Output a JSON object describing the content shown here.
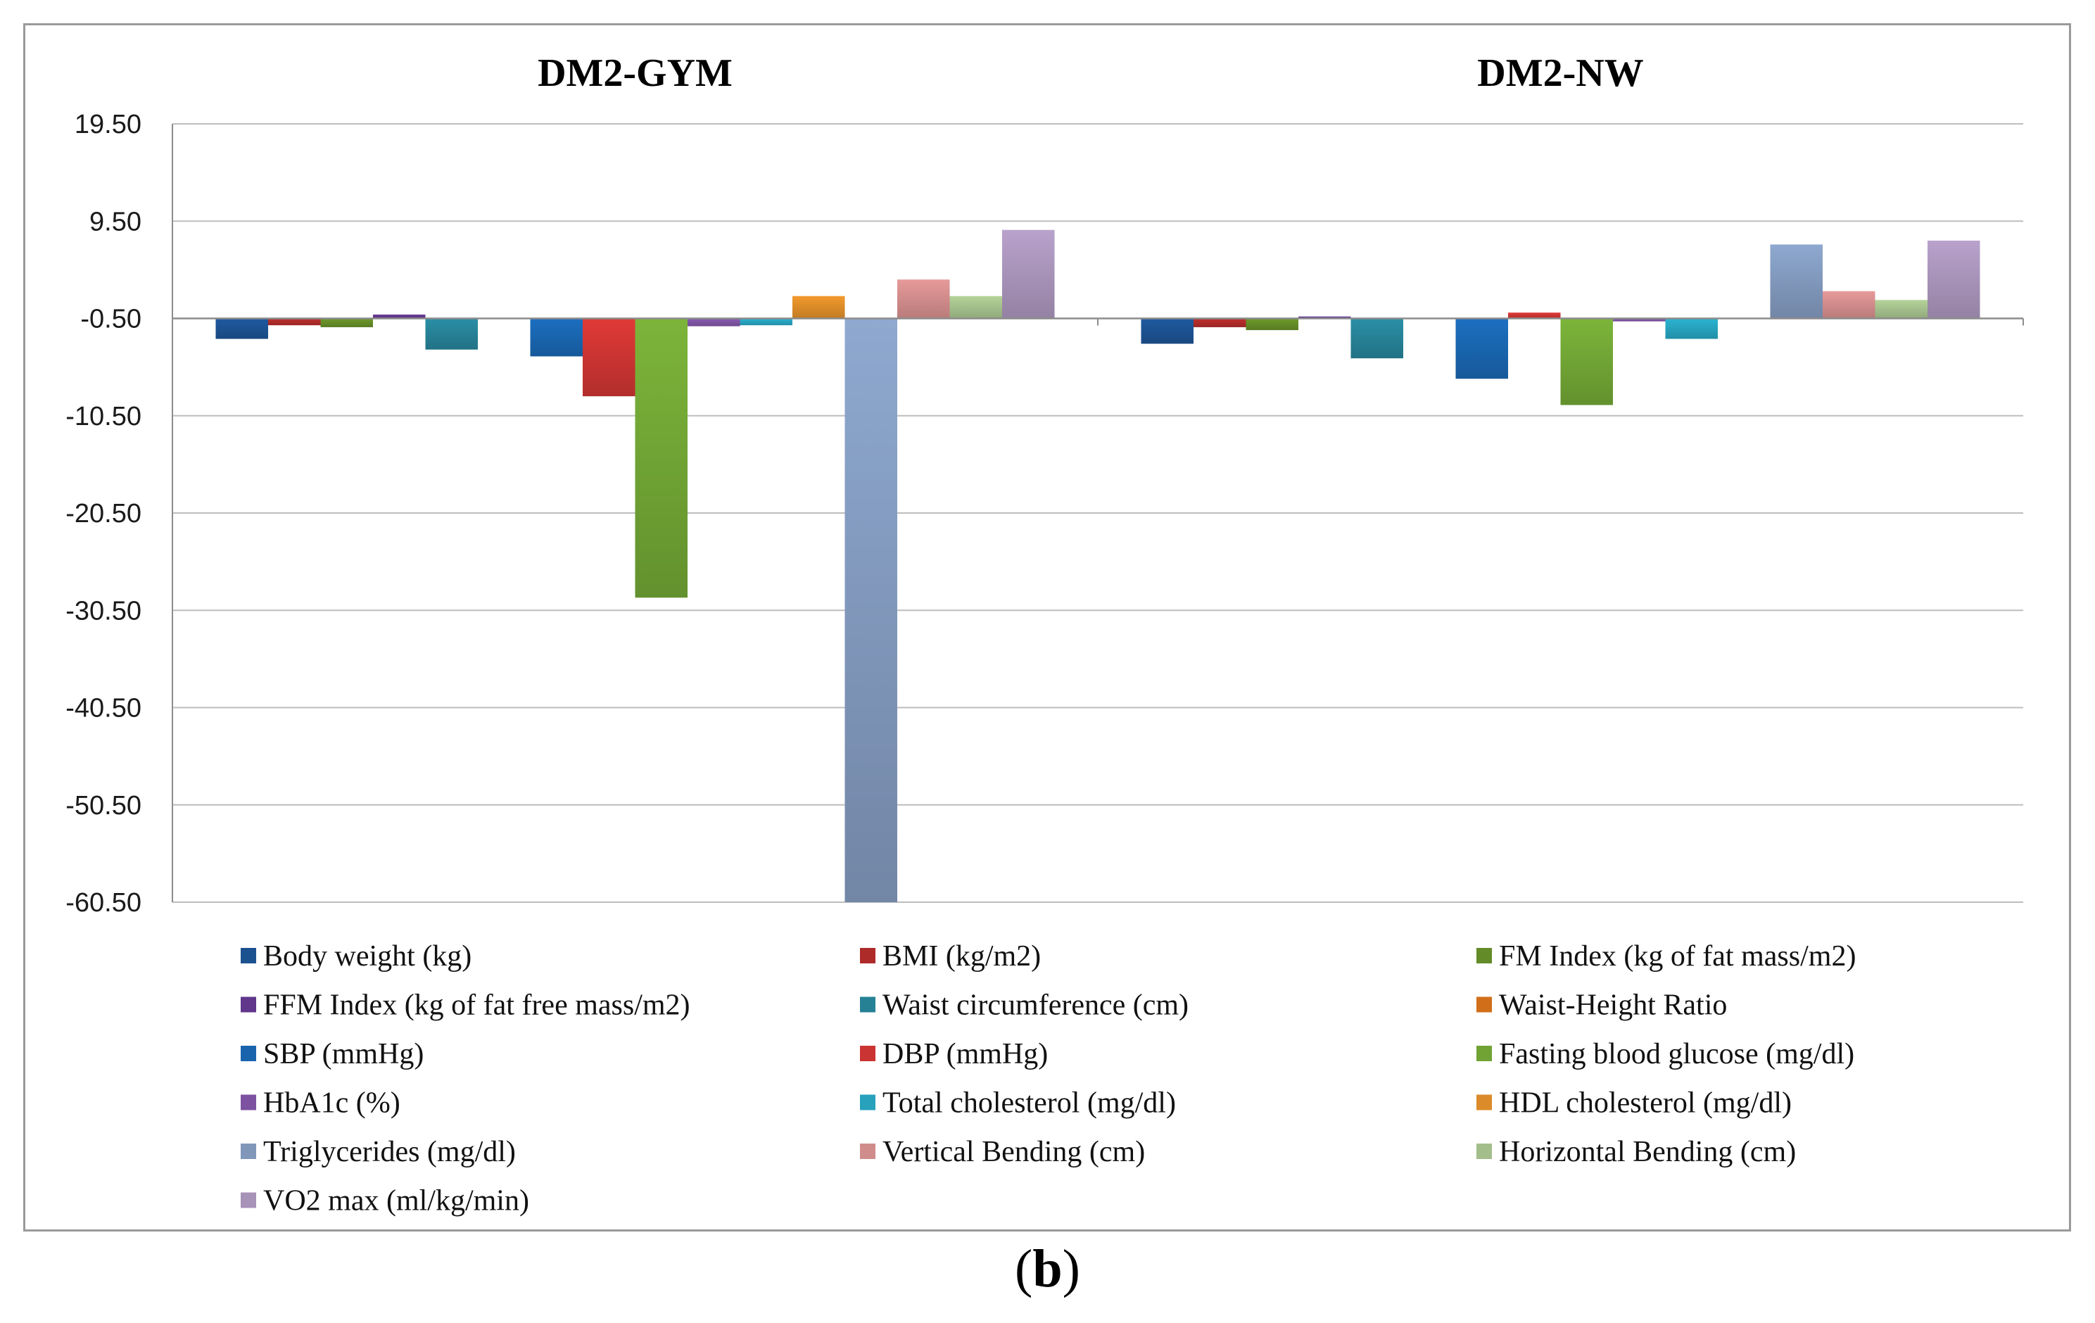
{
  "chart_data": {
    "type": "bar",
    "groups": [
      "DM2-GYM",
      "DM2-NW"
    ],
    "y_ticks": [
      "19.50",
      "9.50",
      "-0.50",
      "-10.50",
      "-20.50",
      "-30.50",
      "-40.50",
      "-50.50",
      "-60.50"
    ],
    "ylim": [
      -60.5,
      19.5
    ],
    "baseline": -0.5,
    "grid": true,
    "legend_position": "bottom",
    "series": [
      {
        "name": "Body weight (kg)",
        "color": "#1f5aa0",
        "values": [
          -2.6,
          -3.1
        ]
      },
      {
        "name": "BMI (kg/m2)",
        "color": "#c0302e",
        "values": [
          -1.2,
          -1.4
        ]
      },
      {
        "name": "FM Index (kg of fat mass/m2)",
        "color": "#6e9a2c",
        "values": [
          -1.4,
          -1.7
        ]
      },
      {
        "name": "FFM Index (kg of fat free mass/m2)",
        "color": "#6b3d9a",
        "values": [
          -0.1,
          -0.3
        ]
      },
      {
        "name": "Waist circumference (cm)",
        "color": "#2a8fa6",
        "values": [
          -3.7,
          -4.6
        ]
      },
      {
        "name": "Waist-Height Ratio",
        "color": "#e87a1c",
        "values": [
          null,
          null
        ]
      },
      {
        "name": "SBP (mmHg)",
        "color": "#1c6fc0",
        "values": [
          -4.4,
          -6.7
        ]
      },
      {
        "name": "DBP (mmHg)",
        "color": "#e03a37",
        "values": [
          -8.5,
          0.1
        ]
      },
      {
        "name": "Fasting blood glucose (mg/dl)",
        "color": "#7cb53a",
        "values": [
          -29.2,
          -9.4
        ]
      },
      {
        "name": "HbA1c (%)",
        "color": "#8a5bb3",
        "values": [
          -1.3,
          -0.8
        ]
      },
      {
        "name": "Total cholesterol (mg/dl)",
        "color": "#2bb3d1",
        "values": [
          -1.2,
          -2.6
        ]
      },
      {
        "name": "HDL cholesterol (mg/dl)",
        "color": "#f39a2d",
        "values": [
          1.8,
          null
        ]
      },
      {
        "name": "Triglycerides (mg/dl)",
        "color": "#8ea8cf",
        "values": [
          -60.5,
          7.1
        ]
      },
      {
        "name": "Vertical Bending (cm)",
        "color": "#e79a9a",
        "values": [
          3.5,
          2.3
        ]
      },
      {
        "name": "Horizontal Bending (cm)",
        "color": "#b5d39a",
        "values": [
          1.8,
          1.4
        ]
      },
      {
        "name": "VO2 max (ml/kg/min)",
        "color": "#b9a2cc",
        "values": [
          8.6,
          7.5
        ]
      }
    ]
  },
  "caption": {
    "open": "(",
    "letter": "b",
    "close": ")"
  }
}
